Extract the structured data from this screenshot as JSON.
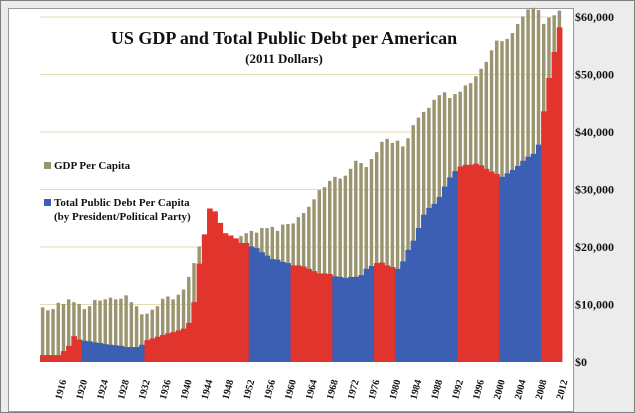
{
  "colors": {
    "gdp_bar": "#9a9570",
    "republican_debt": "#3c5fb4",
    "democrat_debt": "#e0342c",
    "gridline": "#e1dcb4"
  },
  "legend": {
    "gdp_label": "GDP Per Capita",
    "debt_label_line1": "Total Public Debt Per Capita",
    "debt_label_line2": "(by President/Political Party)"
  },
  "chart_data": {
    "type": "bar",
    "title": "US GDP and Total Public Debt per American",
    "subtitle": "(2011 Dollars)",
    "xlabel": "",
    "ylabel": "",
    "ylim": [
      0,
      60000
    ],
    "y_ticks": [
      "$0",
      "$10,000",
      "$20,000",
      "$30,000",
      "$40,000",
      "$50,000",
      "$60,000"
    ],
    "y_tick_values": [
      0,
      10000,
      20000,
      30000,
      40000,
      50000,
      60000
    ],
    "y_axis_side": "right",
    "grid": true,
    "legend_position": "left",
    "x_tick_labels": [
      "1916",
      "1920",
      "1924",
      "1928",
      "1932",
      "1936",
      "1940",
      "1944",
      "1948",
      "1952",
      "1956",
      "1960",
      "1964",
      "1968",
      "1972",
      "1976",
      "1980",
      "1984",
      "1988",
      "1992",
      "1996",
      "2000",
      "2004",
      "2008",
      "2012"
    ],
    "years": [
      1913,
      1914,
      1915,
      1916,
      1917,
      1918,
      1919,
      1920,
      1921,
      1922,
      1923,
      1924,
      1925,
      1926,
      1927,
      1928,
      1929,
      1930,
      1931,
      1932,
      1933,
      1934,
      1935,
      1936,
      1937,
      1938,
      1939,
      1940,
      1941,
      1942,
      1943,
      1944,
      1945,
      1946,
      1947,
      1948,
      1949,
      1950,
      1951,
      1952,
      1953,
      1954,
      1955,
      1956,
      1957,
      1958,
      1959,
      1960,
      1961,
      1962,
      1963,
      1964,
      1965,
      1966,
      1967,
      1968,
      1969,
      1970,
      1971,
      1972,
      1973,
      1974,
      1975,
      1976,
      1977,
      1978,
      1979,
      1980,
      1981,
      1982,
      1983,
      1984,
      1985,
      1986,
      1987,
      1988,
      1989,
      1990,
      1991,
      1992,
      1993,
      1994,
      1995,
      1996,
      1997,
      1998,
      1999,
      2000,
      2001,
      2002,
      2003,
      2004,
      2005,
      2006,
      2007,
      2008,
      2009,
      2010,
      2011,
      2012
    ],
    "series": [
      {
        "name": "GDP Per Capita",
        "values": [
          9500,
          9000,
          9200,
          10300,
          10100,
          10900,
          10400,
          10100,
          9200,
          9700,
          10800,
          10700,
          10900,
          11200,
          10900,
          11000,
          11600,
          10400,
          9700,
          8300,
          8400,
          9100,
          9700,
          11000,
          11400,
          10900,
          11700,
          12600,
          14800,
          17200,
          20100,
          21900,
          21700,
          19000,
          18900,
          19400,
          19100,
          20700,
          21900,
          22400,
          22800,
          22500,
          23300,
          23300,
          23500,
          22800,
          23900,
          24000,
          24100,
          25200,
          25900,
          27000,
          28300,
          29900,
          30400,
          31500,
          32200,
          31900,
          32400,
          33600,
          35000,
          34600,
          33900,
          35300,
          36500,
          38300,
          38800,
          38100,
          38500,
          37500,
          38900,
          41200,
          42500,
          43500,
          44200,
          45600,
          46400,
          46900,
          45900,
          46600,
          47000,
          48100,
          48500,
          49700,
          51000,
          52200,
          54200,
          55900,
          55800,
          56200,
          57200,
          58800,
          60100,
          61300,
          61600,
          61200,
          58800,
          59900,
          60300,
          61100
        ],
        "color": "#9a9570"
      },
      {
        "name": "Total Public Debt Per Capita",
        "values": [
          1200,
          1200,
          1200,
          1200,
          1900,
          2800,
          4500,
          3900,
          3700,
          3600,
          3400,
          3300,
          3100,
          3000,
          2900,
          2800,
          2600,
          2600,
          2600,
          3000,
          3800,
          4100,
          4400,
          4700,
          5000,
          5200,
          5500,
          5800,
          6800,
          10400,
          17100,
          22200,
          26700,
          26200,
          24200,
          22400,
          22000,
          21500,
          20700,
          20700,
          20100,
          19800,
          19100,
          18500,
          17900,
          17800,
          17400,
          17200,
          16800,
          16800,
          16600,
          16200,
          15800,
          15400,
          15400,
          15300,
          14900,
          14800,
          14600,
          14800,
          14800,
          15100,
          16200,
          16700,
          17200,
          17300,
          16800,
          16500,
          16200,
          17500,
          19500,
          21100,
          23300,
          25600,
          26800,
          27500,
          28700,
          30500,
          32100,
          33200,
          34000,
          34300,
          34300,
          34500,
          34200,
          33600,
          33100,
          32700,
          32200,
          32800,
          33400,
          34100,
          35000,
          35700,
          36200,
          37800,
          43600,
          49400,
          53900,
          58200
        ],
        "party": [
          "D",
          "D",
          "D",
          "D",
          "D",
          "D",
          "D",
          "D",
          "R",
          "R",
          "R",
          "R",
          "R",
          "R",
          "R",
          "R",
          "R",
          "R",
          "R",
          "R",
          "D",
          "D",
          "D",
          "D",
          "D",
          "D",
          "D",
          "D",
          "D",
          "D",
          "D",
          "D",
          "D",
          "D",
          "D",
          "D",
          "D",
          "D",
          "D",
          "D",
          "R",
          "R",
          "R",
          "R",
          "R",
          "R",
          "R",
          "R",
          "D",
          "D",
          "D",
          "D",
          "D",
          "D",
          "D",
          "D",
          "R",
          "R",
          "R",
          "R",
          "R",
          "R",
          "R",
          "R",
          "D",
          "D",
          "D",
          "D",
          "R",
          "R",
          "R",
          "R",
          "R",
          "R",
          "R",
          "R",
          "R",
          "R",
          "R",
          "R",
          "D",
          "D",
          "D",
          "D",
          "D",
          "D",
          "D",
          "D",
          "R",
          "R",
          "R",
          "R",
          "R",
          "R",
          "R",
          "R",
          "D",
          "D",
          "D",
          "D"
        ]
      }
    ]
  }
}
